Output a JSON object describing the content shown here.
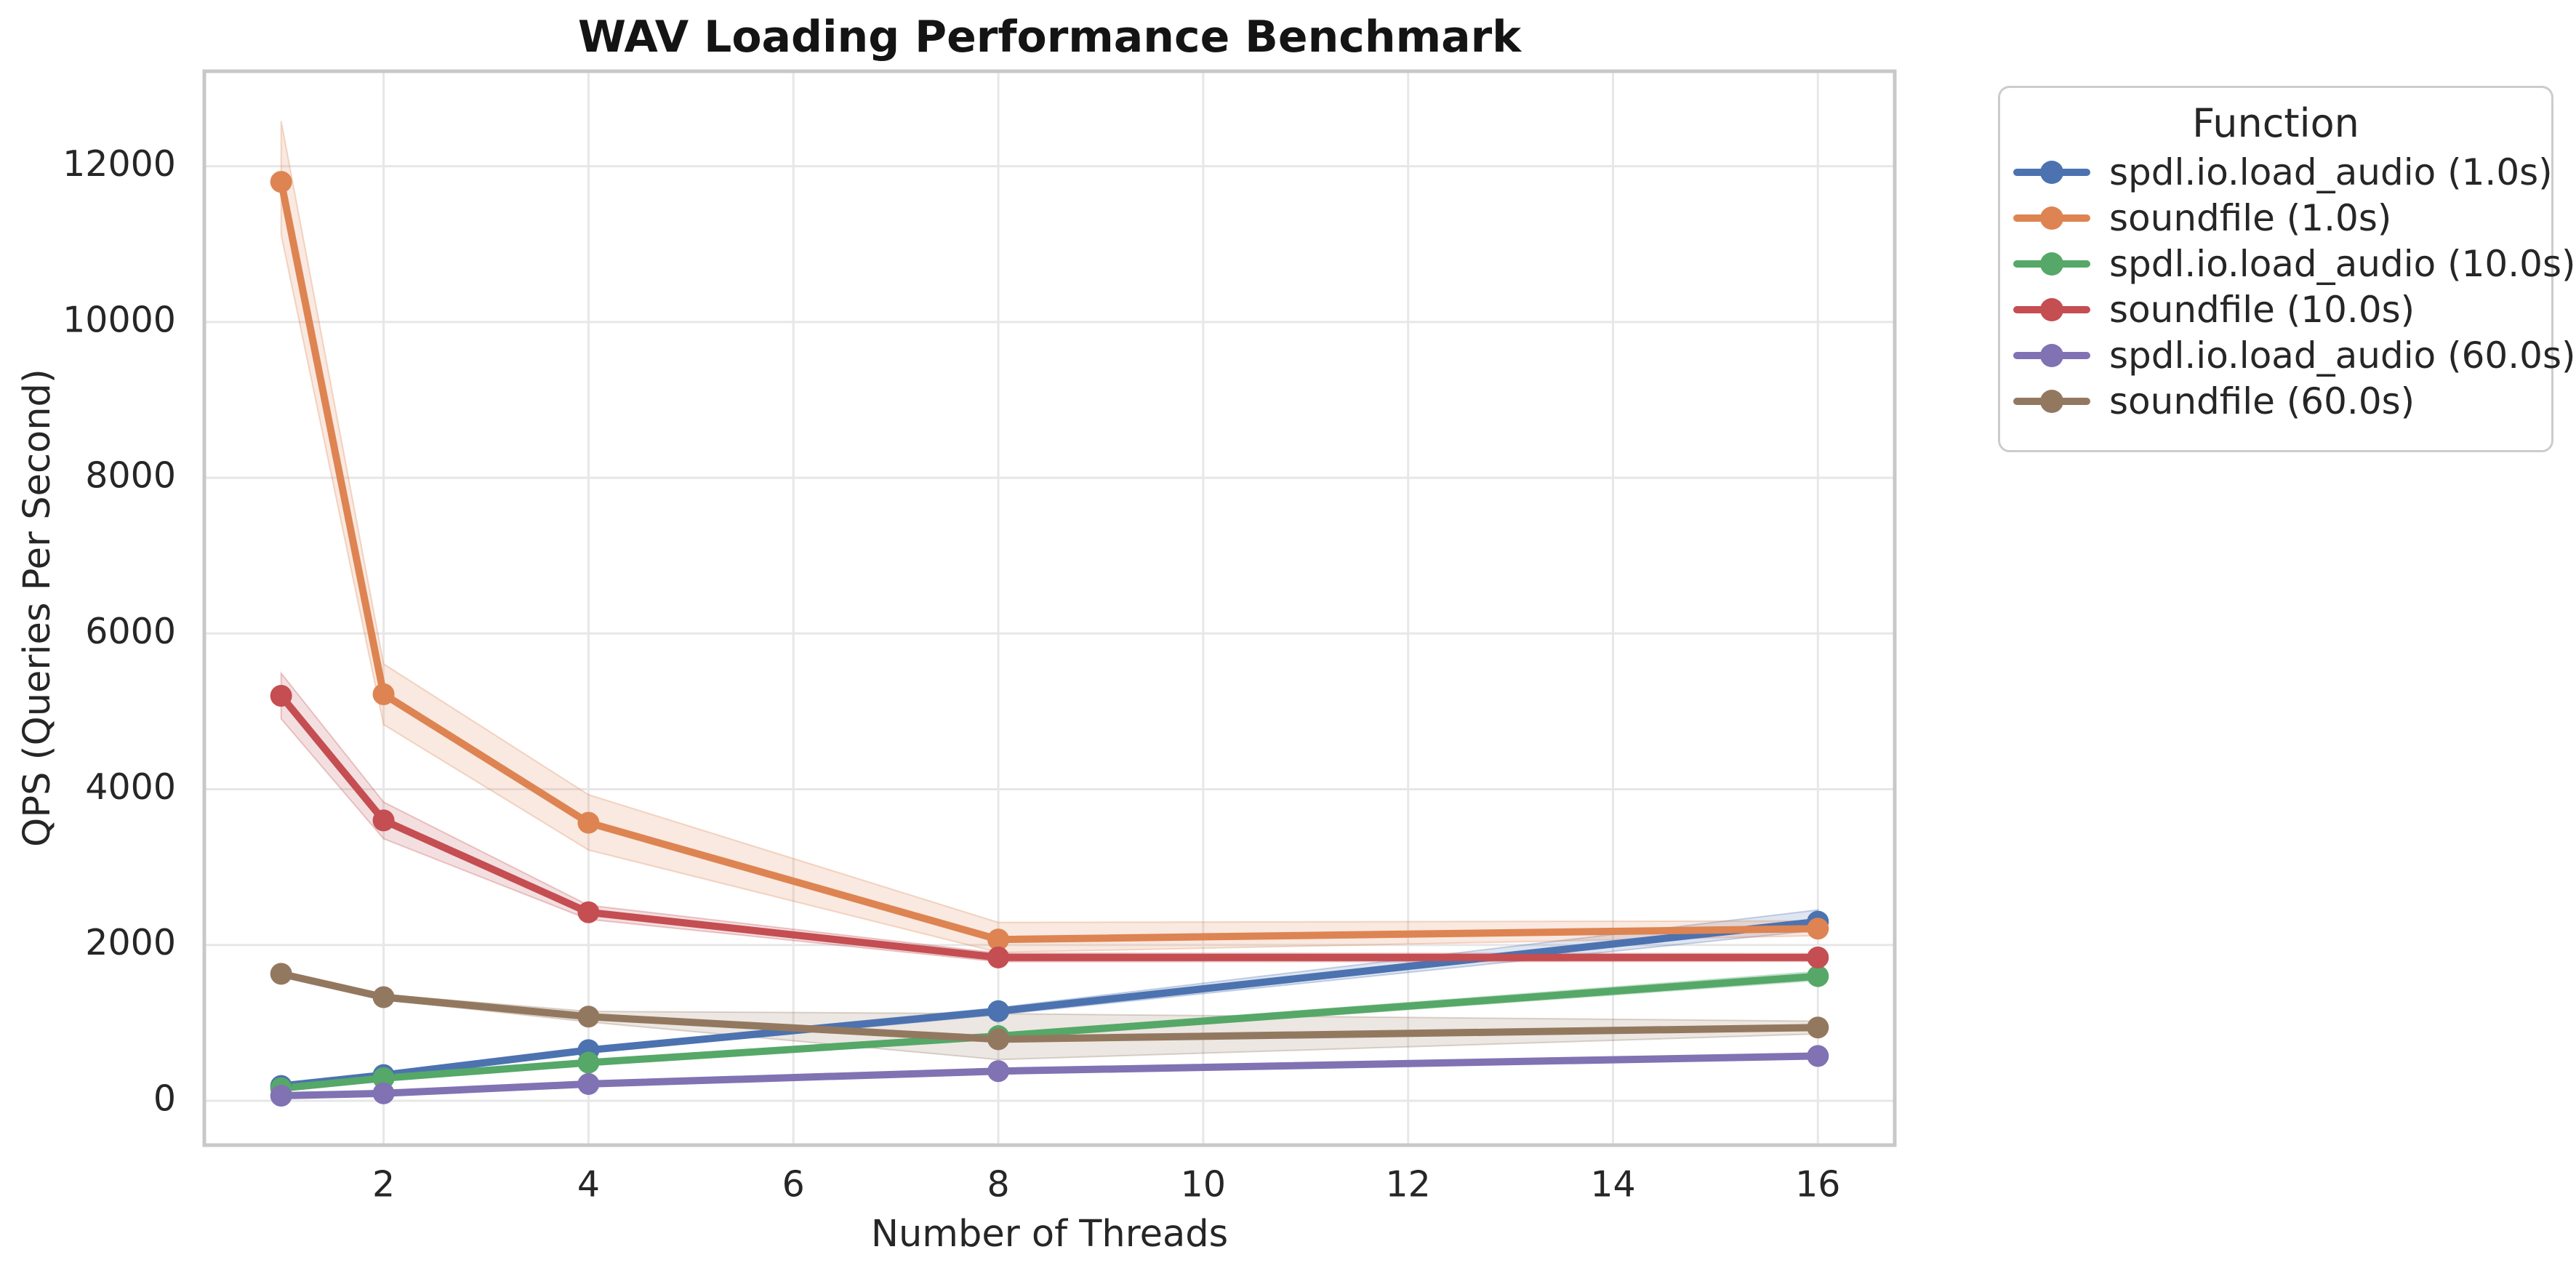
{
  "title": "WAV Loading Performance Benchmark",
  "axes": {
    "xlabel": "Number of Threads",
    "ylabel": "QPS (Queries Per Second)",
    "xticks": [
      2,
      4,
      6,
      8,
      10,
      12,
      14,
      16
    ],
    "yticks": [
      0,
      2000,
      4000,
      6000,
      8000,
      10000,
      12000
    ],
    "tick_color": "#262626",
    "grid_color": "#e7e7e7",
    "frame_color": "#c8c8c8"
  },
  "legend": {
    "title": "Function",
    "items": [
      {
        "label": "spdl.io.load_audio (1.0s)",
        "color": "#4C72B0"
      },
      {
        "label": "soundfile (1.0s)",
        "color": "#DD8452"
      },
      {
        "label": "spdl.io.load_audio (10.0s)",
        "color": "#55A868"
      },
      {
        "label": "soundfile (10.0s)",
        "color": "#C44E52"
      },
      {
        "label": "spdl.io.load_audio (60.0s)",
        "color": "#8172B3"
      },
      {
        "label": "soundfile (60.0s)",
        "color": "#937860"
      }
    ]
  },
  "chart_data": {
    "type": "line",
    "title": "WAV Loading Performance Benchmark",
    "xlabel": "Number of Threads",
    "ylabel": "QPS (Queries Per Second)",
    "x": [
      1,
      2,
      4,
      8,
      16
    ],
    "xlim": [
      0.25,
      16.75
    ],
    "ylim": [
      -570,
      13220
    ],
    "grid": true,
    "legend_position": "outside-right",
    "legend_title": "Function",
    "series": [
      {
        "name": "spdl.io.load_audio (1.0s)",
        "color": "#4C72B0",
        "values": [
          190,
          330,
          650,
          1150,
          2300
        ],
        "ci_lo": [
          172,
          312,
          618,
          1105,
          2190
        ],
        "ci_hi": [
          208,
          348,
          682,
          1195,
          2450
        ]
      },
      {
        "name": "soundfile (1.0s)",
        "color": "#DD8452",
        "values": [
          11800,
          5220,
          3570,
          2070,
          2210
        ],
        "ci_lo": [
          11120,
          4830,
          3220,
          1905,
          2120
        ],
        "ci_hi": [
          12580,
          5610,
          3930,
          2290,
          2310
        ]
      },
      {
        "name": "spdl.io.load_audio (10.0s)",
        "color": "#55A868",
        "values": [
          160,
          290,
          490,
          830,
          1600
        ],
        "ci_lo": [
          148,
          274,
          464,
          798,
          1545
        ],
        "ci_hi": [
          172,
          306,
          516,
          862,
          1660
        ]
      },
      {
        "name": "soundfile (10.0s)",
        "color": "#C44E52",
        "values": [
          5200,
          3600,
          2420,
          1840,
          1840
        ],
        "ci_lo": [
          4905,
          3365,
          2330,
          1785,
          1790
        ],
        "ci_hi": [
          5490,
          3835,
          2510,
          1895,
          1890
        ]
      },
      {
        "name": "spdl.io.load_audio (60.0s)",
        "color": "#8172B3",
        "values": [
          65,
          95,
          215,
          380,
          575
        ],
        "ci_lo": [
          58,
          87,
          200,
          366,
          550
        ],
        "ci_hi": [
          72,
          103,
          230,
          394,
          600
        ]
      },
      {
        "name": "soundfile (60.0s)",
        "color": "#937860",
        "values": [
          1630,
          1330,
          1080,
          790,
          940
        ],
        "ci_lo": [
          1598,
          1298,
          1012,
          528,
          858
        ],
        "ci_hi": [
          1662,
          1362,
          1148,
          1118,
          1022
        ]
      }
    ]
  }
}
